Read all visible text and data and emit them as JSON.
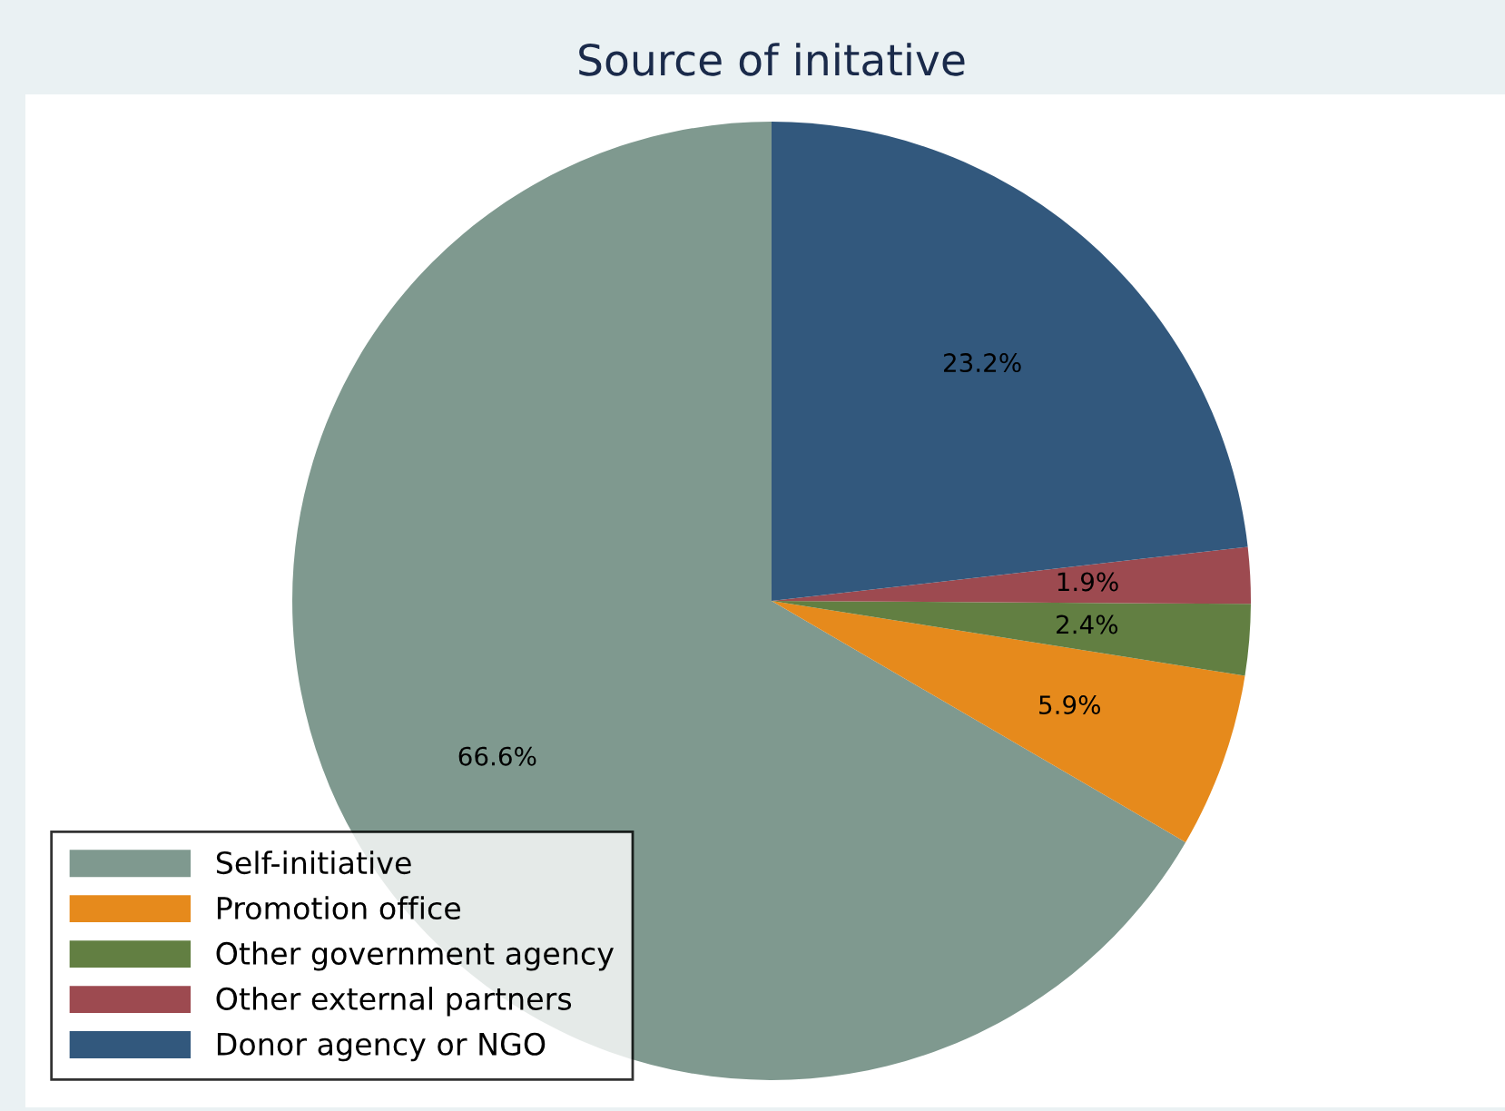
{
  "chart_data": {
    "type": "pie",
    "title": "Source of initative",
    "categories": [
      "Self-initiative",
      "Promotion office",
      "Other government agency",
      "Other external partners",
      "Donor agency or NGO"
    ],
    "values": [
      66.6,
      5.9,
      2.4,
      1.9,
      23.2
    ],
    "colors": [
      "#7f998f",
      "#e68a1c",
      "#627f42",
      "#9d4a50",
      "#32587d"
    ],
    "value_labels": [
      "66.6%",
      "5.9%",
      "2.4%",
      "1.9%",
      "23.2%"
    ],
    "legend": "bottom left"
  }
}
